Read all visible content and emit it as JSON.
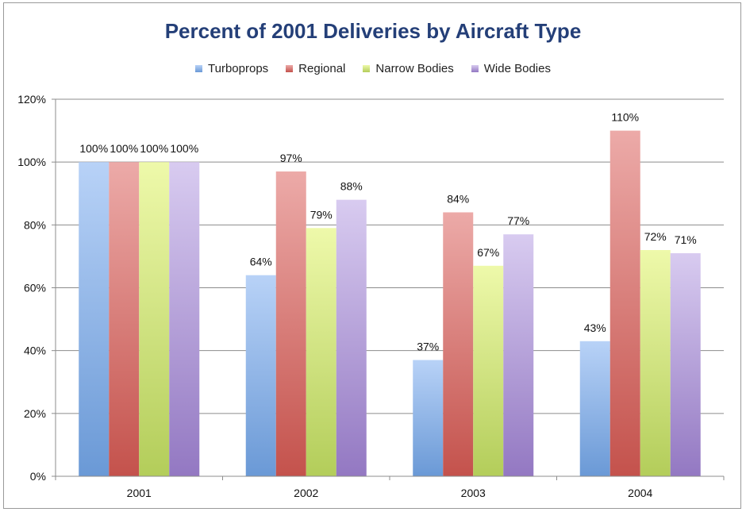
{
  "chart_data": {
    "type": "bar",
    "title": "Percent of 2001 Deliveries by Aircraft Type",
    "categories": [
      "2001",
      "2002",
      "2003",
      "2004"
    ],
    "series": [
      {
        "name": "Turboprops",
        "values": [
          100,
          64,
          37,
          43
        ],
        "labels": [
          "100%",
          "64%",
          "37%",
          "43%"
        ],
        "color_light": "#b8d2f7",
        "color_dark": "#6a99d6"
      },
      {
        "name": "Regional",
        "values": [
          100,
          97,
          84,
          110
        ],
        "labels": [
          "100%",
          "97%",
          "84%",
          "110%"
        ],
        "color_light": "#ecaaa8",
        "color_dark": "#c4524c"
      },
      {
        "name": "Narrow Bodies",
        "values": [
          100,
          79,
          67,
          72
        ],
        "labels": [
          "100%",
          "79%",
          "67%",
          "72%"
        ],
        "color_light": "#eef9aa",
        "color_dark": "#b3cd5a"
      },
      {
        "name": "Wide Bodies",
        "values": [
          100,
          88,
          77,
          71
        ],
        "labels": [
          "100%",
          "88%",
          "77%",
          "71%"
        ],
        "color_light": "#d8cbf0",
        "color_dark": "#9378c2"
      }
    ],
    "ylim": [
      0,
      120
    ],
    "yticks": [
      0,
      20,
      40,
      60,
      80,
      100,
      120
    ],
    "ytick_labels": [
      "0%",
      "20%",
      "40%",
      "60%",
      "80%",
      "100%",
      "120%"
    ],
    "xlabel": "",
    "ylabel": "",
    "grid": true,
    "legend_position": "top"
  }
}
